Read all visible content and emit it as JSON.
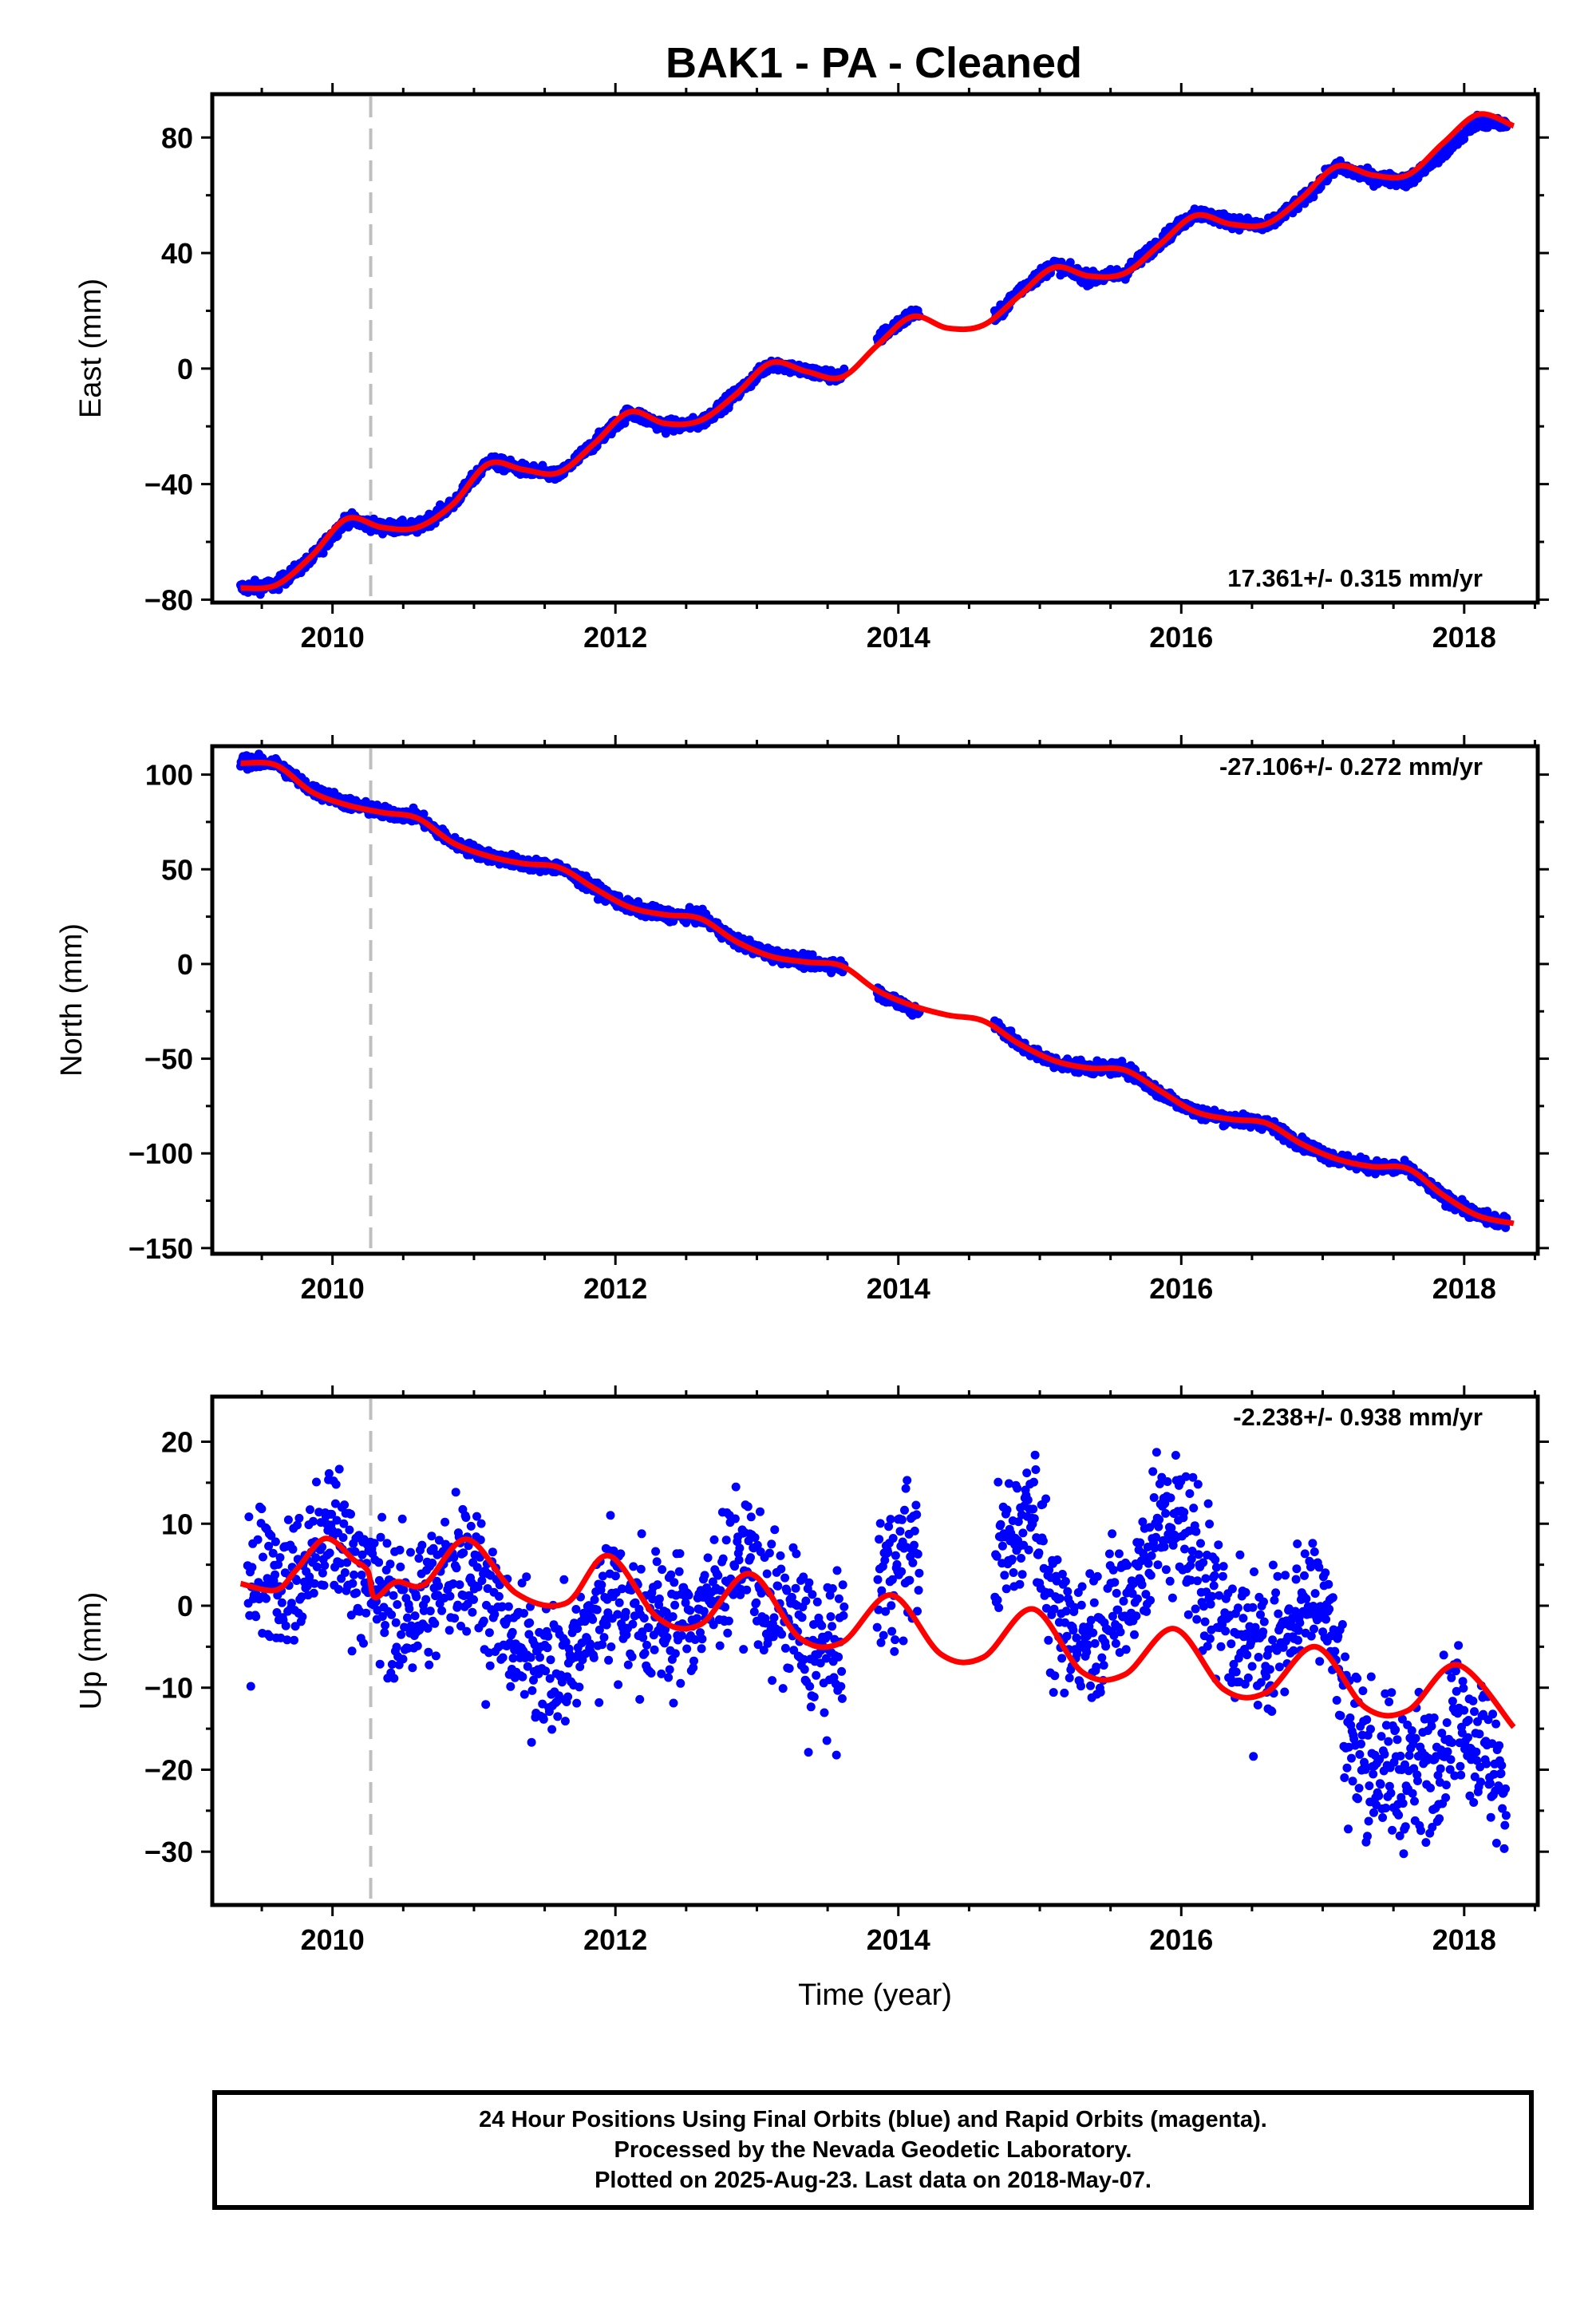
{
  "title": "BAK1  - PA - Cleaned",
  "footer": {
    "line1": "24 Hour Positions Using Final Orbits (blue) and Rapid Orbits (magenta).",
    "line2": "Processed by the Nevada Geodetic Laboratory.",
    "line3": "Plotted on 2025-Aug-23. Last data on 2018-May-07."
  },
  "colors": {
    "data": "#0000ff",
    "model": "#ff0000",
    "event_line": "#bfbfbf",
    "frame": "#000000"
  },
  "chart_data": [
    {
      "type": "scatter",
      "ylabel": "East (mm)",
      "xlabel": "",
      "rate_label": "17.361+/- 0.315 mm/yr",
      "rate_position": "bottom-right",
      "xlim": [
        2009.15,
        2018.52
      ],
      "ylim": [
        -81,
        95
      ],
      "xticks": [
        2010,
        2012,
        2014,
        2016,
        2018
      ],
      "yticks": [
        80,
        40,
        0,
        -40,
        -80
      ],
      "ytick_labels": [
        "80",
        "40",
        "0",
        "−40",
        "−80"
      ],
      "event_line_x": 2010.27,
      "series": [
        {
          "kind": "observations",
          "x": [
            2009.35,
            2009.6,
            2009.85,
            2010.1,
            2010.35,
            2010.6,
            2010.85,
            2011.1,
            2011.35,
            2011.6,
            2011.85,
            2012.1,
            2012.35,
            2012.6,
            2012.85,
            2013.1,
            2013.35,
            2013.6,
            2013.9,
            2014.1,
            2014.7,
            2014.85,
            2015.1,
            2015.35,
            2015.6,
            2015.85,
            2016.1,
            2016.35,
            2016.6,
            2016.85,
            2017.1,
            2017.35,
            2017.6,
            2017.85,
            2018.1,
            2018.3
          ],
          "y": [
            -76,
            -75,
            -66,
            -52,
            -55,
            -55,
            -47,
            -32,
            -35,
            -37,
            -26,
            -15,
            -20,
            -19,
            -9,
            2,
            -1,
            -3,
            12,
            19,
            18,
            27,
            36,
            31,
            33,
            44,
            54,
            51,
            49,
            58,
            70,
            66,
            65,
            74,
            86,
            84
          ]
        },
        {
          "kind": "model",
          "x": [
            2009.35,
            2009.6,
            2009.85,
            2010.1,
            2010.35,
            2010.6,
            2010.85,
            2011.1,
            2011.35,
            2011.6,
            2011.85,
            2012.1,
            2012.35,
            2012.6,
            2012.85,
            2013.1,
            2013.35,
            2013.6,
            2013.85,
            2014.1,
            2014.35,
            2014.6,
            2014.85,
            2015.1,
            2015.35,
            2015.6,
            2015.85,
            2016.1,
            2016.35,
            2016.6,
            2016.85,
            2017.1,
            2017.35,
            2017.6,
            2017.85,
            2018.1,
            2018.35
          ],
          "y": [
            -76,
            -75,
            -65,
            -52,
            -55,
            -55,
            -47,
            -33,
            -35,
            -36,
            -26,
            -15,
            -19,
            -18,
            -9,
            2,
            -1,
            -3,
            8,
            18,
            14,
            15,
            25,
            35,
            32,
            33,
            43,
            53,
            50,
            50,
            59,
            70,
            67,
            67,
            78,
            88,
            84
          ]
        }
      ]
    },
    {
      "type": "scatter",
      "ylabel": "North (mm)",
      "xlabel": "",
      "rate_label": "-27.106+/- 0.272 mm/yr",
      "rate_position": "top-right",
      "xlim": [
        2009.15,
        2018.52
      ],
      "ylim": [
        -153,
        115
      ],
      "xticks": [
        2010,
        2012,
        2014,
        2016,
        2018
      ],
      "yticks": [
        100,
        50,
        0,
        -50,
        -100,
        -150
      ],
      "ytick_labels": [
        "100",
        "50",
        "0",
        "−50",
        "−100",
        "−150"
      ],
      "event_line_x": 2010.27,
      "series": [
        {
          "kind": "observations",
          "x": [
            2009.35,
            2009.6,
            2009.85,
            2010.1,
            2010.35,
            2010.6,
            2010.85,
            2011.1,
            2011.35,
            2011.6,
            2011.85,
            2012.1,
            2012.35,
            2012.6,
            2012.85,
            2013.1,
            2013.35,
            2013.6,
            2013.85,
            2014.1,
            2014.7,
            2014.85,
            2015.1,
            2015.35,
            2015.6,
            2015.85,
            2016.1,
            2016.35,
            2016.6,
            2016.85,
            2017.1,
            2017.35,
            2017.6,
            2017.85,
            2018.1,
            2018.3
          ],
          "y": [
            107,
            106,
            92,
            85,
            80,
            78,
            64,
            57,
            53,
            51,
            40,
            30,
            26,
            25,
            12,
            5,
            1,
            -1,
            -15,
            -24,
            -32,
            -43,
            -52,
            -55,
            -55,
            -68,
            -78,
            -82,
            -84,
            -95,
            -103,
            -107,
            -108,
            -123,
            -133,
            -137
          ]
        },
        {
          "kind": "model",
          "x": [
            2009.35,
            2009.6,
            2009.85,
            2010.1,
            2010.35,
            2010.6,
            2010.85,
            2011.1,
            2011.35,
            2011.6,
            2011.85,
            2012.1,
            2012.35,
            2012.6,
            2012.85,
            2013.1,
            2013.35,
            2013.6,
            2013.85,
            2014.1,
            2014.35,
            2014.6,
            2014.85,
            2015.1,
            2015.35,
            2015.6,
            2015.85,
            2016.1,
            2016.35,
            2016.6,
            2016.85,
            2017.1,
            2017.35,
            2017.6,
            2017.85,
            2018.1,
            2018.35
          ],
          "y": [
            106,
            105,
            91,
            84,
            80,
            77,
            64,
            57,
            53,
            51,
            40,
            30,
            26,
            24,
            12,
            4,
            1,
            -1,
            -14,
            -22,
            -27,
            -30,
            -42,
            -51,
            -55,
            -56,
            -67,
            -78,
            -82,
            -84,
            -95,
            -103,
            -107,
            -108,
            -122,
            -133,
            -137
          ]
        }
      ]
    },
    {
      "type": "scatter",
      "ylabel": "Up (mm)",
      "xlabel": "Time (year)",
      "rate_label": "-2.238+/- 0.938 mm/yr",
      "rate_position": "top-right",
      "xlim": [
        2009.15,
        2018.52
      ],
      "ylim": [
        -36.5,
        25.5
      ],
      "xticks": [
        2010,
        2012,
        2014,
        2016,
        2018
      ],
      "yticks": [
        20,
        10,
        0,
        -10,
        -20,
        -30
      ],
      "ytick_labels": [
        "20",
        "10",
        "0",
        "−10",
        "−20",
        "−30"
      ],
      "event_line_x": 2010.27,
      "series": [
        {
          "kind": "observations",
          "x": [
            2009.4,
            2009.55,
            2009.7,
            2009.9,
            2010.05,
            2010.15,
            2010.3,
            2010.5,
            2010.7,
            2010.9,
            2011.05,
            2011.2,
            2011.4,
            2011.6,
            2011.8,
            2011.95,
            2012.15,
            2012.4,
            2012.6,
            2012.8,
            2012.95,
            2013.1,
            2013.3,
            2013.5,
            2013.9,
            2014.05,
            2014.7,
            2014.85,
            2014.95,
            2015.1,
            2015.3,
            2015.5,
            2015.7,
            2015.85,
            2016.0,
            2016.2,
            2016.4,
            2016.6,
            2016.8,
            2017.0,
            2017.2,
            2017.4,
            2017.6,
            2017.8,
            2017.95,
            2018.15,
            2018.3
          ],
          "y": [
            3,
            6,
            2,
            7,
            9,
            5,
            2,
            -1,
            1,
            6,
            4,
            -3,
            -6,
            -8,
            -4,
            3,
            -1,
            -2,
            -1,
            5,
            6,
            0,
            -3,
            -7,
            4,
            6,
            6,
            10,
            14,
            -2,
            -4,
            -1,
            4,
            10,
            10,
            2,
            -4,
            -6,
            0,
            2,
            -16,
            -20,
            -21,
            -18,
            -13,
            -17,
            -24
          ]
        },
        {
          "kind": "model",
          "x": [
            2009.35,
            2009.6,
            2009.75,
            2009.95,
            2010.15,
            2010.25,
            2010.3,
            2010.45,
            2010.65,
            2010.95,
            2011.3,
            2011.65,
            2011.95,
            2012.3,
            2012.6,
            2012.95,
            2013.3,
            2013.6,
            2013.95,
            2014.3,
            2014.6,
            2014.95,
            2015.3,
            2015.6,
            2015.95,
            2016.3,
            2016.6,
            2016.95,
            2017.3,
            2017.6,
            2017.95,
            2018.35
          ],
          "y": [
            2.7,
            1.9,
            4.5,
            8.2,
            5.6,
            4.2,
            1.0,
            2.9,
            2.6,
            8.1,
            1.5,
            0.3,
            6.1,
            -1.5,
            -2.3,
            3.9,
            -3.9,
            -4.5,
            1.3,
            -5.9,
            -6.3,
            -0.4,
            -8.1,
            -8.4,
            -2.8,
            -10.2,
            -10.6,
            -5.0,
            -12.4,
            -12.8,
            -7.2,
            -14.8
          ]
        }
      ]
    }
  ]
}
